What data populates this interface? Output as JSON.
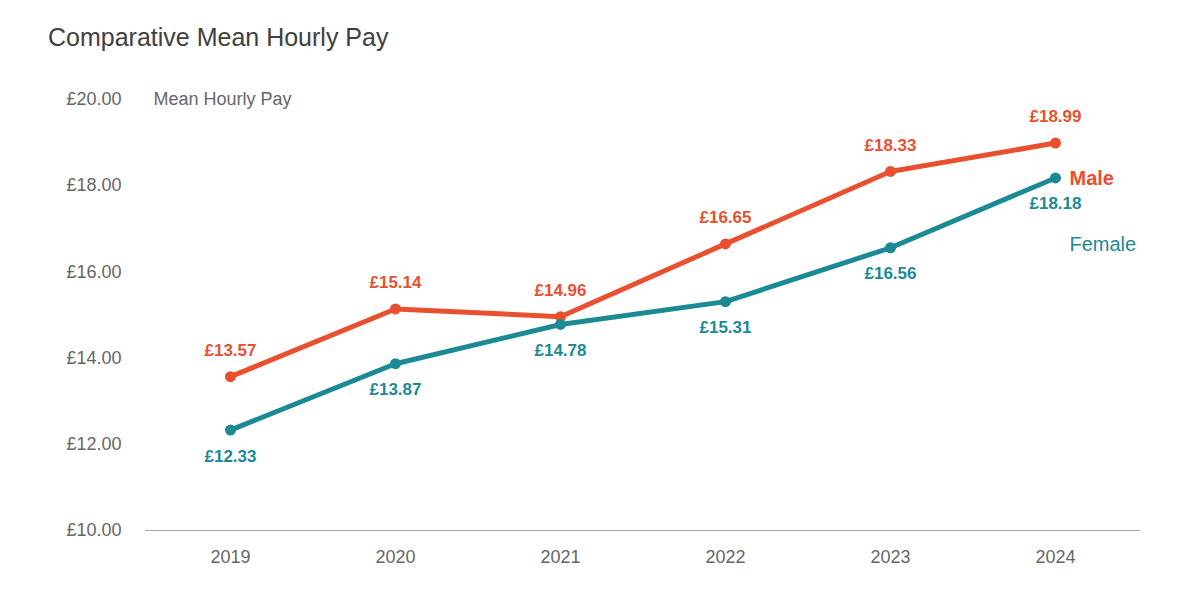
{
  "chart_data": {
    "type": "line",
    "title": "Comparative Mean Hourly Pay",
    "y_label": "Mean Hourly Pay",
    "categories": [
      "2019",
      "2020",
      "2021",
      "2022",
      "2023",
      "2024"
    ],
    "series": [
      {
        "name": "Male",
        "color": "#e8502f",
        "marker": "circle",
        "values": [
          13.57,
          15.14,
          14.96,
          16.65,
          18.33,
          18.99
        ],
        "value_labels": [
          "£13.57",
          "£15.14",
          "£14.96",
          "£16.65",
          "£18.33",
          "£18.99"
        ]
      },
      {
        "name": "Female",
        "color": "#1b8a94",
        "marker": "circle",
        "values": [
          12.33,
          13.87,
          14.78,
          15.31,
          16.56,
          18.18
        ],
        "value_labels": [
          "£12.33",
          "£13.87",
          "£14.78",
          "£15.31",
          "£16.56",
          "£18.18"
        ]
      }
    ],
    "ylim": [
      10,
      20
    ],
    "yticks": [
      {
        "value": 10,
        "label": "£10.00"
      },
      {
        "value": 12,
        "label": "£12.00"
      },
      {
        "value": 14,
        "label": "£14.00"
      },
      {
        "value": 16,
        "label": "£16.00"
      },
      {
        "value": 18,
        "label": "£18.00"
      },
      {
        "value": 20,
        "label": "£20.00"
      }
    ],
    "grid": false,
    "data_labels": true
  }
}
